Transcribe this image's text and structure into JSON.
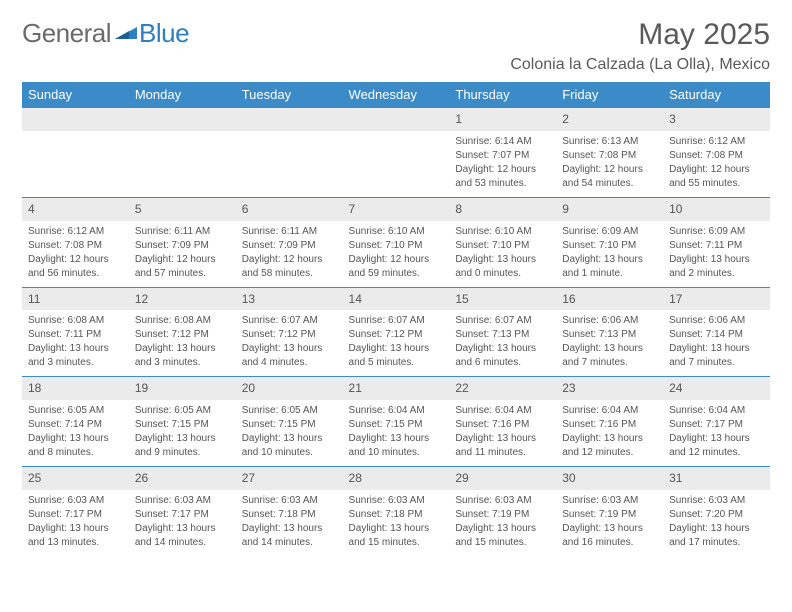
{
  "brand": {
    "part1": "General",
    "part2": "Blue"
  },
  "title": "May 2025",
  "location": "Colonia la Calzada (La Olla), Mexico",
  "colors": {
    "header_bg": "#3b8bc8",
    "header_text": "#ffffff",
    "daynum_bg": "#ebebeb",
    "body_text": "#555555",
    "rule": "#3b8bc8",
    "brand_gray": "#6b6b6b",
    "brand_blue": "#2d7fc1"
  },
  "day_headers": [
    "Sunday",
    "Monday",
    "Tuesday",
    "Wednesday",
    "Thursday",
    "Friday",
    "Saturday"
  ],
  "weeks": [
    [
      null,
      null,
      null,
      null,
      {
        "n": "1",
        "sr": "6:14 AM",
        "ss": "7:07 PM",
        "dl": "12 hours and 53 minutes."
      },
      {
        "n": "2",
        "sr": "6:13 AM",
        "ss": "7:08 PM",
        "dl": "12 hours and 54 minutes."
      },
      {
        "n": "3",
        "sr": "6:12 AM",
        "ss": "7:08 PM",
        "dl": "12 hours and 55 minutes."
      }
    ],
    [
      {
        "n": "4",
        "sr": "6:12 AM",
        "ss": "7:08 PM",
        "dl": "12 hours and 56 minutes."
      },
      {
        "n": "5",
        "sr": "6:11 AM",
        "ss": "7:09 PM",
        "dl": "12 hours and 57 minutes."
      },
      {
        "n": "6",
        "sr": "6:11 AM",
        "ss": "7:09 PM",
        "dl": "12 hours and 58 minutes."
      },
      {
        "n": "7",
        "sr": "6:10 AM",
        "ss": "7:10 PM",
        "dl": "12 hours and 59 minutes."
      },
      {
        "n": "8",
        "sr": "6:10 AM",
        "ss": "7:10 PM",
        "dl": "13 hours and 0 minutes."
      },
      {
        "n": "9",
        "sr": "6:09 AM",
        "ss": "7:10 PM",
        "dl": "13 hours and 1 minute."
      },
      {
        "n": "10",
        "sr": "6:09 AM",
        "ss": "7:11 PM",
        "dl": "13 hours and 2 minutes."
      }
    ],
    [
      {
        "n": "11",
        "sr": "6:08 AM",
        "ss": "7:11 PM",
        "dl": "13 hours and 3 minutes."
      },
      {
        "n": "12",
        "sr": "6:08 AM",
        "ss": "7:12 PM",
        "dl": "13 hours and 3 minutes."
      },
      {
        "n": "13",
        "sr": "6:07 AM",
        "ss": "7:12 PM",
        "dl": "13 hours and 4 minutes."
      },
      {
        "n": "14",
        "sr": "6:07 AM",
        "ss": "7:12 PM",
        "dl": "13 hours and 5 minutes."
      },
      {
        "n": "15",
        "sr": "6:07 AM",
        "ss": "7:13 PM",
        "dl": "13 hours and 6 minutes."
      },
      {
        "n": "16",
        "sr": "6:06 AM",
        "ss": "7:13 PM",
        "dl": "13 hours and 7 minutes."
      },
      {
        "n": "17",
        "sr": "6:06 AM",
        "ss": "7:14 PM",
        "dl": "13 hours and 7 minutes."
      }
    ],
    [
      {
        "n": "18",
        "sr": "6:05 AM",
        "ss": "7:14 PM",
        "dl": "13 hours and 8 minutes."
      },
      {
        "n": "19",
        "sr": "6:05 AM",
        "ss": "7:15 PM",
        "dl": "13 hours and 9 minutes."
      },
      {
        "n": "20",
        "sr": "6:05 AM",
        "ss": "7:15 PM",
        "dl": "13 hours and 10 minutes."
      },
      {
        "n": "21",
        "sr": "6:04 AM",
        "ss": "7:15 PM",
        "dl": "13 hours and 10 minutes."
      },
      {
        "n": "22",
        "sr": "6:04 AM",
        "ss": "7:16 PM",
        "dl": "13 hours and 11 minutes."
      },
      {
        "n": "23",
        "sr": "6:04 AM",
        "ss": "7:16 PM",
        "dl": "13 hours and 12 minutes."
      },
      {
        "n": "24",
        "sr": "6:04 AM",
        "ss": "7:17 PM",
        "dl": "13 hours and 12 minutes."
      }
    ],
    [
      {
        "n": "25",
        "sr": "6:03 AM",
        "ss": "7:17 PM",
        "dl": "13 hours and 13 minutes."
      },
      {
        "n": "26",
        "sr": "6:03 AM",
        "ss": "7:17 PM",
        "dl": "13 hours and 14 minutes."
      },
      {
        "n": "27",
        "sr": "6:03 AM",
        "ss": "7:18 PM",
        "dl": "13 hours and 14 minutes."
      },
      {
        "n": "28",
        "sr": "6:03 AM",
        "ss": "7:18 PM",
        "dl": "13 hours and 15 minutes."
      },
      {
        "n": "29",
        "sr": "6:03 AM",
        "ss": "7:19 PM",
        "dl": "13 hours and 15 minutes."
      },
      {
        "n": "30",
        "sr": "6:03 AM",
        "ss": "7:19 PM",
        "dl": "13 hours and 16 minutes."
      },
      {
        "n": "31",
        "sr": "6:03 AM",
        "ss": "7:20 PM",
        "dl": "13 hours and 17 minutes."
      }
    ]
  ],
  "labels": {
    "sunrise": "Sunrise:",
    "sunset": "Sunset:",
    "daylight": "Daylight:"
  }
}
